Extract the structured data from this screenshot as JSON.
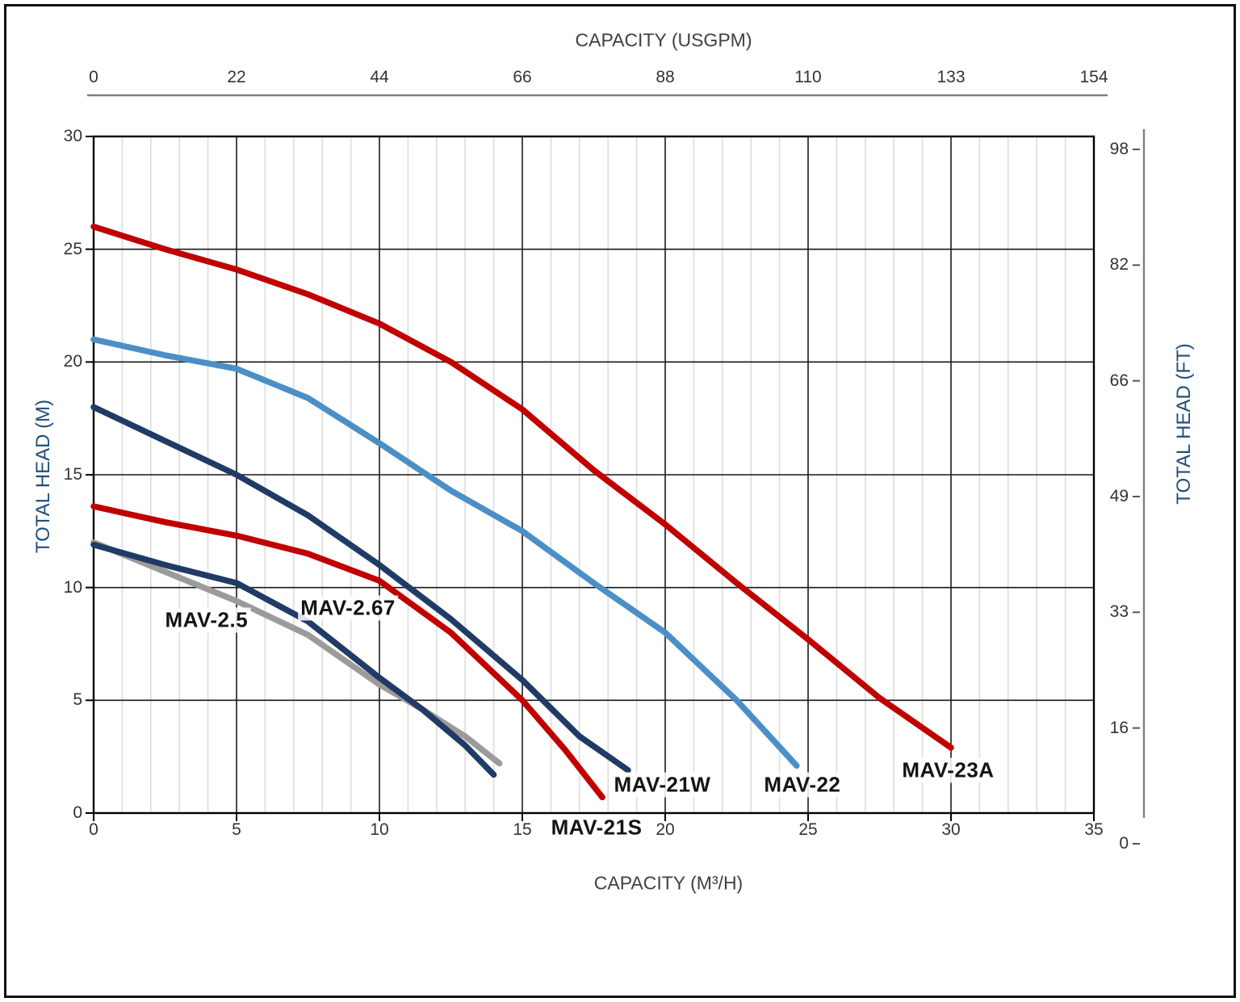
{
  "chart_data": {
    "type": "line",
    "title": "",
    "x_axis_bottom": {
      "label": "CAPACITY (M³/H)",
      "ticks": [
        "0",
        "5",
        "10",
        "15",
        "20",
        "25",
        "30",
        "35"
      ],
      "tick_values": [
        0,
        5,
        10,
        15,
        20,
        25,
        30,
        35
      ],
      "range": [
        0,
        35
      ],
      "minor_grid_step": 1,
      "major_grid_step": 5
    },
    "x_axis_top": {
      "label": "CAPACITY (USGPM)",
      "ticks": [
        "0",
        "22",
        "44",
        "66",
        "88",
        "110",
        "133",
        "154"
      ],
      "tick_values_m3h": [
        0,
        5,
        10,
        15,
        20,
        25,
        30,
        35
      ]
    },
    "y_axis_left": {
      "label": "TOTAL HEAD (M)",
      "ticks": [
        "30",
        "25",
        "20",
        "15",
        "10",
        "5",
        "0"
      ],
      "tick_values": [
        30,
        25,
        20,
        15,
        10,
        5,
        0
      ],
      "range": [
        0,
        30
      ],
      "major_grid_step": 5
    },
    "y_axis_right": {
      "label": "TOTAL HEAD (FT)",
      "ticks": [
        "98",
        "82",
        "66",
        "49",
        "33",
        "16",
        "0"
      ]
    },
    "grid": {
      "minor_color": "#DCDCDC",
      "major_color": "#1a1a1a",
      "legend_position": "curve-labels-inline"
    },
    "series": [
      {
        "name": "MAV-2.5",
        "color": "#9B9B9B",
        "label_pos": {
          "x": 3.95,
          "y": 8.55
        },
        "points": [
          [
            0,
            12.0
          ],
          [
            2.5,
            10.7
          ],
          [
            5,
            9.4
          ],
          [
            7.5,
            7.9
          ],
          [
            10,
            5.7
          ],
          [
            11.5,
            4.6
          ],
          [
            13,
            3.4
          ],
          [
            14.2,
            2.2
          ]
        ]
      },
      {
        "name": "MAV-2.67",
        "color": "#1F3B66",
        "label_pos": {
          "x": 8.9,
          "y": 9.1
        },
        "points": [
          [
            0,
            11.9
          ],
          [
            2.5,
            11.0
          ],
          [
            5,
            10.2
          ],
          [
            7.5,
            8.5
          ],
          [
            10,
            6.0
          ],
          [
            11.5,
            4.6
          ],
          [
            13,
            3.0
          ],
          [
            14,
            1.7
          ]
        ]
      },
      {
        "name": "MAV-21S",
        "color": "#C00000",
        "label_pos": {
          "x": 17.6,
          "y": -0.65
        },
        "points": [
          [
            0,
            13.6
          ],
          [
            2.5,
            12.9
          ],
          [
            5,
            12.3
          ],
          [
            7.5,
            11.5
          ],
          [
            10,
            10.3
          ],
          [
            12.5,
            8.0
          ],
          [
            15,
            5.0
          ],
          [
            16.5,
            2.8
          ],
          [
            17.8,
            0.7
          ]
        ]
      },
      {
        "name": "MAV-21W",
        "color": "#1F3B66",
        "label_pos": {
          "x": 19.9,
          "y": 1.25
        },
        "points": [
          [
            0,
            18.0
          ],
          [
            2.5,
            16.5
          ],
          [
            5,
            15.0
          ],
          [
            7.5,
            13.2
          ],
          [
            10,
            11.0
          ],
          [
            12.5,
            8.6
          ],
          [
            15,
            5.9
          ],
          [
            17,
            3.4
          ],
          [
            18.7,
            1.9
          ]
        ]
      },
      {
        "name": "MAV-22",
        "color": "#4B8FC6",
        "label_pos": {
          "x": 24.8,
          "y": 1.25
        },
        "points": [
          [
            0,
            21.0
          ],
          [
            2.5,
            20.3
          ],
          [
            5,
            19.7
          ],
          [
            7.5,
            18.4
          ],
          [
            10,
            16.4
          ],
          [
            12.5,
            14.3
          ],
          [
            15,
            12.5
          ],
          [
            17.5,
            10.2
          ],
          [
            20,
            8.0
          ],
          [
            22.5,
            5.0
          ],
          [
            24.6,
            2.1
          ]
        ]
      },
      {
        "name": "MAV-23A",
        "color": "#C00000",
        "label_pos": {
          "x": 29.9,
          "y": 1.9
        },
        "points": [
          [
            0,
            26.0
          ],
          [
            2.5,
            25.0
          ],
          [
            5,
            24.1
          ],
          [
            7.5,
            23.0
          ],
          [
            10,
            21.7
          ],
          [
            12.5,
            20.0
          ],
          [
            15,
            17.9
          ],
          [
            17.5,
            15.2
          ],
          [
            20,
            12.8
          ],
          [
            22.5,
            10.2
          ],
          [
            25,
            7.7
          ],
          [
            27.5,
            5.1
          ],
          [
            30,
            2.9
          ]
        ]
      }
    ]
  }
}
